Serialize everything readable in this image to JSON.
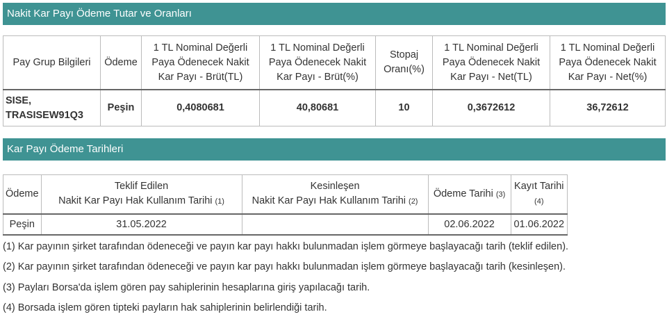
{
  "section1": {
    "title": "Nakit Kar Payı Ödeme Tutar ve Oranları",
    "headers": [
      "Pay Grup Bilgileri",
      "Ödeme",
      "1 TL Nominal Değerli Paya Ödenecek Nakit Kar Payı - Brüt(TL)",
      "1 TL Nominal Değerli Paya Ödenecek Nakit Kar Payı - Brüt(%)",
      "Stopaj Oranı(%)",
      "1 TL Nominal Değerli Paya Ödenecek Nakit Kar Payı - Net(TL)",
      "1 TL Nominal Değerli Paya Ödenecek Nakit Kar Payı - Net(%)"
    ],
    "row": [
      "SISE, TRASISEW91Q3",
      "Peşin",
      "0,4080681",
      "40,80681",
      "10",
      "0,3672612",
      "36,72612"
    ]
  },
  "section2": {
    "title": "Kar Payı Ödeme Tarihleri",
    "headers": [
      {
        "line1": "",
        "line2": "Ödeme",
        "fn": ""
      },
      {
        "line1": "Teklif Edilen",
        "line2": "Nakit Kar Payı Hak Kullanım Tarihi",
        "fn": "(1)"
      },
      {
        "line1": "Kesinleşen",
        "line2": "Nakit Kar Payı Hak Kullanım Tarihi",
        "fn": "(2)"
      },
      {
        "line1": "",
        "line2": "Ödeme Tarihi",
        "fn": "(3)"
      },
      {
        "line1": "",
        "line2": "Kayıt Tarihi",
        "fn": "(4)"
      }
    ],
    "row": [
      "Peşin",
      "31.05.2022",
      "",
      "02.06.2022",
      "01.06.2022"
    ]
  },
  "notes": [
    "(1) Kar payının şirket tarafından ödeneceği ve payın kar payı hakkı bulunmadan işlem görmeye başlayacağı tarih (teklif edilen).",
    "(2) Kar payının şirket tarafından ödeneceği ve payın kar payı hakkı bulunmadan işlem görmeye başlayacağı tarih (kesinleşen).",
    "(3) Payları Borsa'da işlem gören pay sahiplerinin hesaplarına giriş yapılacağı tarih.",
    "(4) Borsada işlem gören tipteki payların hak sahiplerinin belirlendiği tarih."
  ],
  "colors": {
    "header_bar": "#3f9393"
  }
}
